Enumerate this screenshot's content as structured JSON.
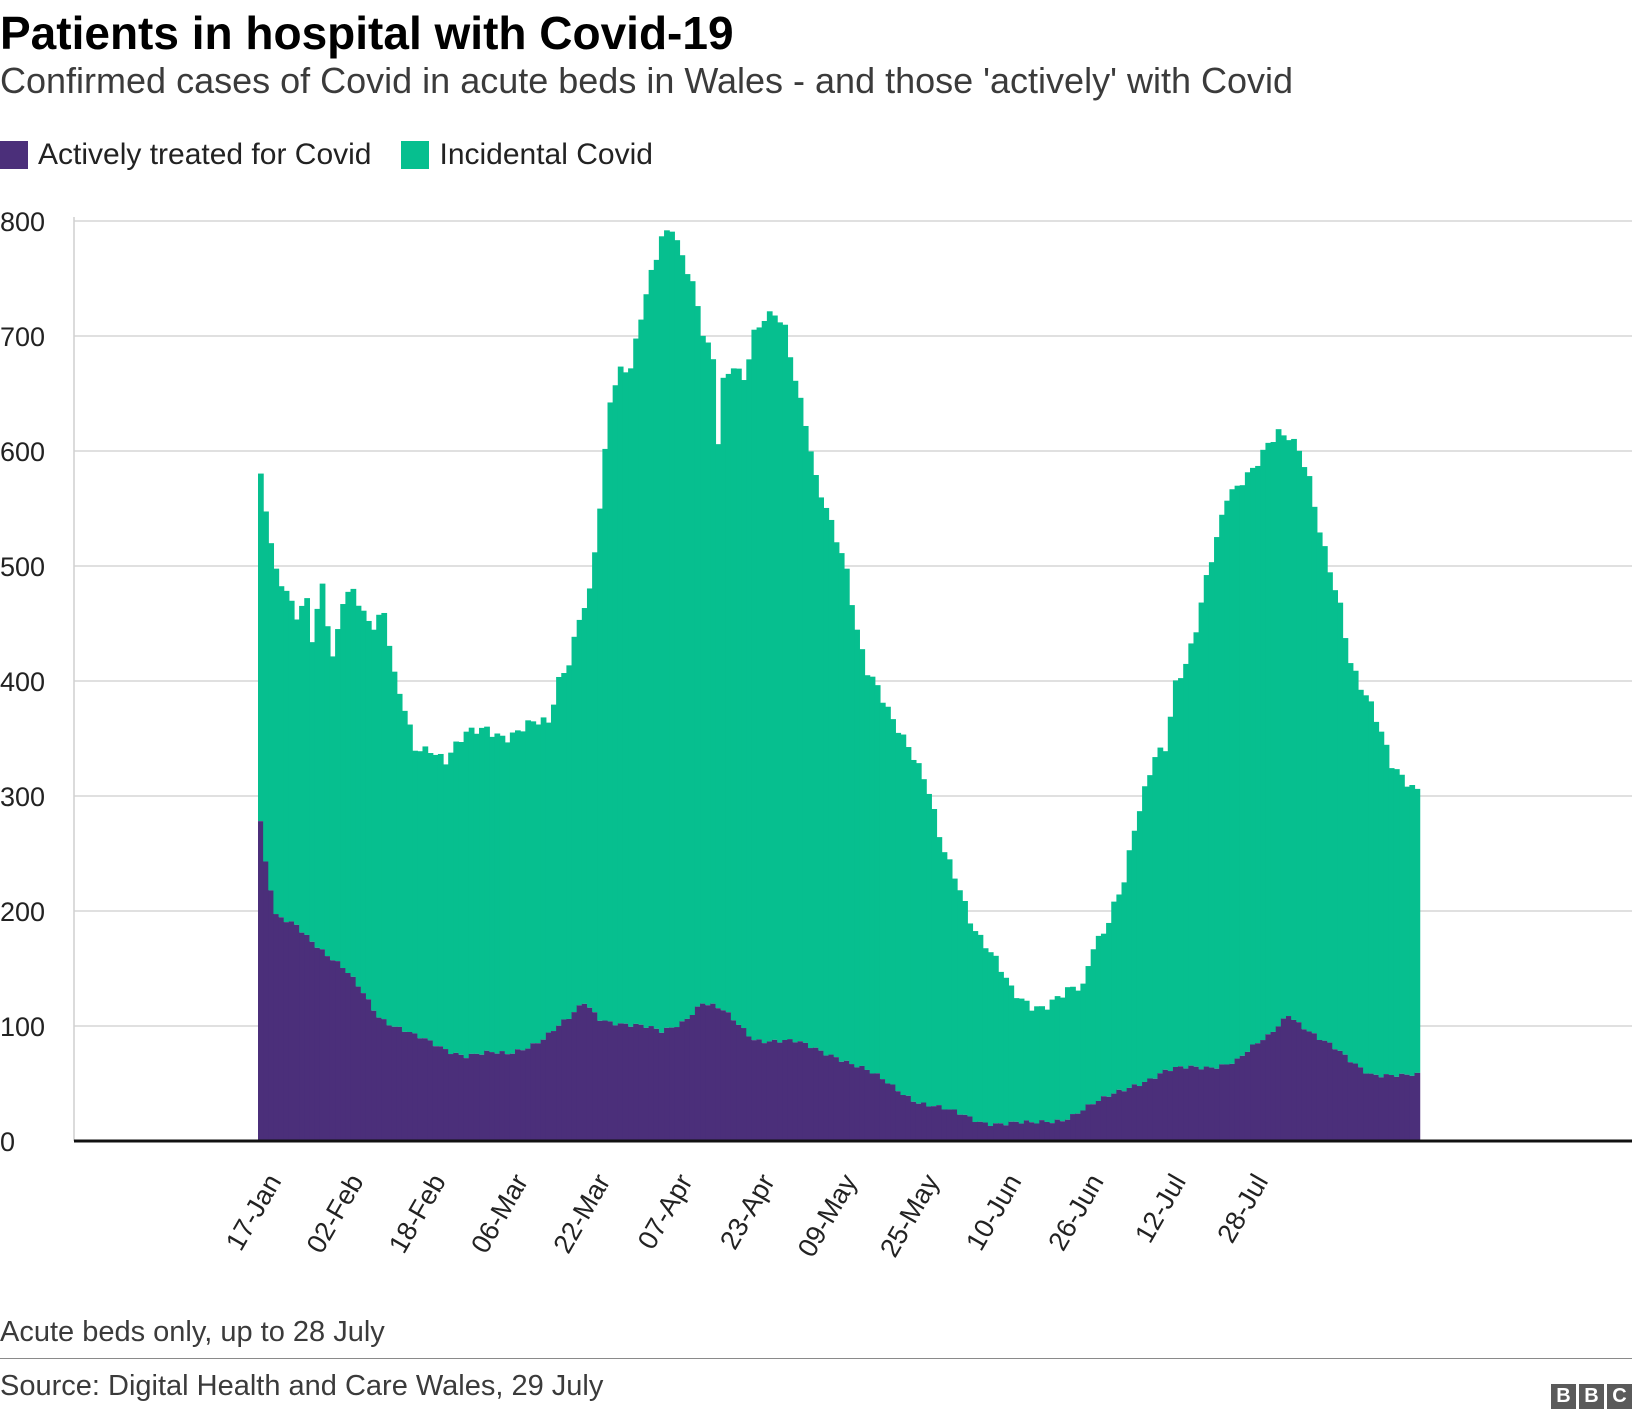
{
  "header": {
    "title": "Patients in hospital with Covid-19",
    "subtitle": "Confirmed cases of Covid in acute beds in Wales - and those 'actively' with Covid"
  },
  "legend": [
    {
      "label": "Actively treated for Covid",
      "color": "#4b2f7a"
    },
    {
      "label": "Incidental Covid",
      "color": "#06bf8f"
    }
  ],
  "footer": {
    "note": "Acute beds only, up to 28 July",
    "source": "Source: Digital Health and Care Wales, 29 July",
    "logo_letters": [
      "B",
      "B",
      "C"
    ]
  },
  "chart_data": {
    "type": "area",
    "stacked": true,
    "y_ticks": [
      0,
      100,
      200,
      300,
      400,
      500,
      600,
      700,
      800
    ],
    "ylim": [
      0,
      800
    ],
    "x_ticks": [
      "17-Jan",
      "02-Feb",
      "18-Feb",
      "06-Mar",
      "22-Mar",
      "07-Apr",
      "23-Apr",
      "09-May",
      "25-May",
      "10-Jun",
      "26-Jun",
      "12-Jul",
      "28-Jul"
    ],
    "x_tick_day_index": [
      0,
      16,
      32,
      48,
      64,
      80,
      96,
      112,
      128,
      144,
      160,
      176,
      192
    ],
    "grid": true,
    "legend_position": "top-left",
    "series": [
      {
        "name": "Actively treated for Covid",
        "color": "#4b2f7a",
        "anchors": [
          [
            0,
            275
          ],
          [
            1,
            240
          ],
          [
            3,
            195
          ],
          [
            7,
            190
          ],
          [
            10,
            175
          ],
          [
            13,
            160
          ],
          [
            17,
            145
          ],
          [
            20,
            130
          ],
          [
            23,
            110
          ],
          [
            26,
            100
          ],
          [
            30,
            90
          ],
          [
            40,
            75
          ],
          [
            48,
            75
          ],
          [
            55,
            90
          ],
          [
            60,
            105
          ],
          [
            63,
            120
          ],
          [
            66,
            108
          ],
          [
            72,
            100
          ],
          [
            78,
            95
          ],
          [
            82,
            105
          ],
          [
            86,
            120
          ],
          [
            90,
            112
          ],
          [
            96,
            90
          ],
          [
            104,
            85
          ],
          [
            112,
            75
          ],
          [
            118,
            60
          ],
          [
            124,
            45
          ],
          [
            128,
            35
          ],
          [
            134,
            25
          ],
          [
            140,
            18
          ],
          [
            146,
            15
          ],
          [
            150,
            14
          ],
          [
            156,
            20
          ],
          [
            164,
            35
          ],
          [
            170,
            50
          ],
          [
            176,
            60
          ],
          [
            184,
            65
          ],
          [
            190,
            70
          ],
          [
            196,
            90
          ],
          [
            200,
            112
          ],
          [
            206,
            88
          ],
          [
            212,
            70
          ],
          [
            216,
            60
          ],
          [
            222,
            55
          ],
          [
            225,
            56
          ]
        ]
      },
      {
        "name": "Incidental Covid",
        "color": "#06bf8f",
        "totals_anchors": [
          [
            0,
            580
          ],
          [
            1,
            555
          ],
          [
            2,
            525
          ],
          [
            3,
            500
          ],
          [
            5,
            480
          ],
          [
            7,
            455
          ],
          [
            9,
            465
          ],
          [
            10,
            432
          ],
          [
            12,
            480
          ],
          [
            14,
            420
          ],
          [
            16,
            475
          ],
          [
            18,
            485
          ],
          [
            20,
            460
          ],
          [
            22,
            445
          ],
          [
            24,
            455
          ],
          [
            26,
            400
          ],
          [
            28,
            375
          ],
          [
            30,
            345
          ],
          [
            33,
            345
          ],
          [
            36,
            330
          ],
          [
            40,
            350
          ],
          [
            44,
            360
          ],
          [
            48,
            355
          ],
          [
            52,
            360
          ],
          [
            56,
            360
          ],
          [
            58,
            400
          ],
          [
            60,
            420
          ],
          [
            62,
            460
          ],
          [
            64,
            480
          ],
          [
            66,
            550
          ],
          [
            68,
            640
          ],
          [
            70,
            665
          ],
          [
            72,
            670
          ],
          [
            74,
            720
          ],
          [
            76,
            760
          ],
          [
            78,
            790
          ],
          [
            80,
            795
          ],
          [
            82,
            765
          ],
          [
            84,
            740
          ],
          [
            86,
            700
          ],
          [
            88,
            680
          ],
          [
            89,
            612
          ],
          [
            90,
            665
          ],
          [
            92,
            680
          ],
          [
            94,
            665
          ],
          [
            96,
            700
          ],
          [
            98,
            710
          ],
          [
            100,
            715
          ],
          [
            102,
            705
          ],
          [
            104,
            665
          ],
          [
            106,
            630
          ],
          [
            108,
            580
          ],
          [
            110,
            550
          ],
          [
            112,
            520
          ],
          [
            114,
            490
          ],
          [
            116,
            440
          ],
          [
            118,
            410
          ],
          [
            120,
            400
          ],
          [
            122,
            380
          ],
          [
            124,
            360
          ],
          [
            126,
            340
          ],
          [
            128,
            320
          ],
          [
            130,
            300
          ],
          [
            132,
            265
          ],
          [
            134,
            245
          ],
          [
            136,
            225
          ],
          [
            138,
            195
          ],
          [
            140,
            175
          ],
          [
            142,
            160
          ],
          [
            144,
            145
          ],
          [
            146,
            130
          ],
          [
            148,
            125
          ],
          [
            150,
            122
          ],
          [
            152,
            120
          ],
          [
            154,
            122
          ],
          [
            156,
            125
          ],
          [
            158,
            128
          ],
          [
            160,
            130
          ],
          [
            162,
            170
          ],
          [
            164,
            185
          ],
          [
            166,
            210
          ],
          [
            168,
            230
          ],
          [
            170,
            270
          ],
          [
            172,
            300
          ],
          [
            174,
            330
          ],
          [
            176,
            340
          ],
          [
            178,
            400
          ],
          [
            180,
            420
          ],
          [
            182,
            450
          ],
          [
            184,
            490
          ],
          [
            186,
            520
          ],
          [
            188,
            555
          ],
          [
            190,
            565
          ],
          [
            192,
            580
          ],
          [
            194,
            595
          ],
          [
            196,
            612
          ],
          [
            198,
            618
          ],
          [
            200,
            610
          ],
          [
            202,
            596
          ],
          [
            204,
            570
          ],
          [
            206,
            530
          ],
          [
            208,
            500
          ],
          [
            210,
            470
          ],
          [
            212,
            420
          ],
          [
            214,
            395
          ],
          [
            216,
            375
          ],
          [
            218,
            350
          ],
          [
            220,
            325
          ],
          [
            222,
            318
          ],
          [
            225,
            310
          ]
        ]
      }
    ]
  }
}
